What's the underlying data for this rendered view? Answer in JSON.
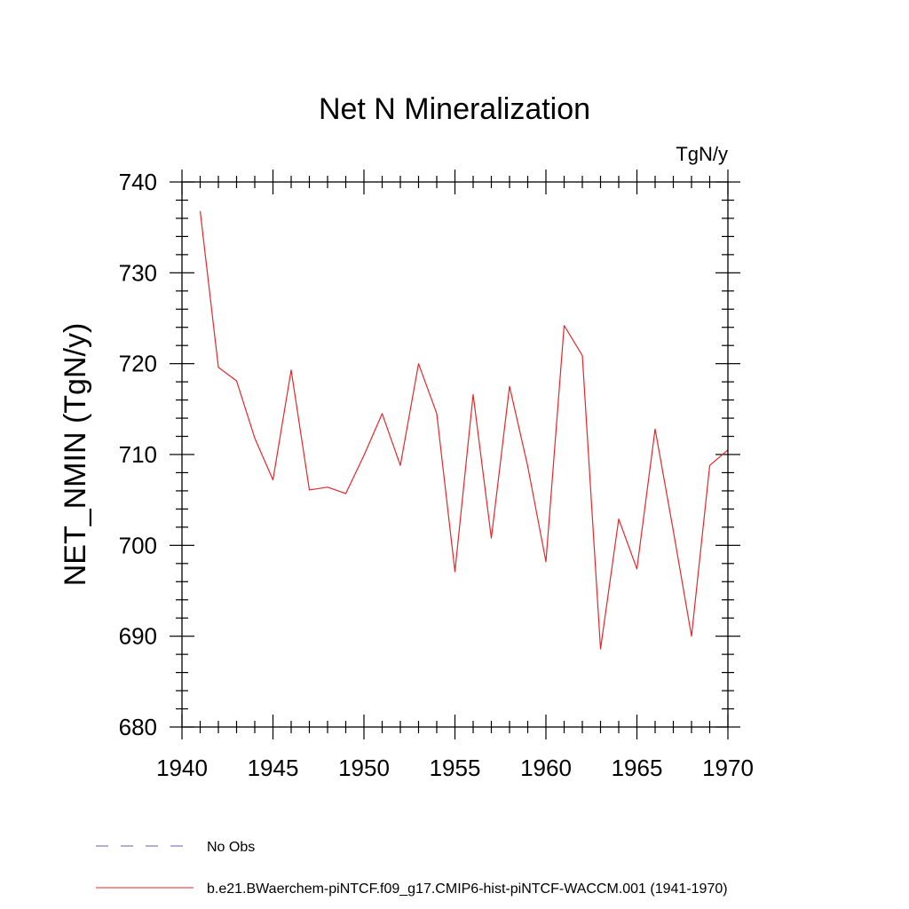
{
  "chart_data": {
    "type": "line",
    "title": "Net N Mineralization",
    "units": "TgN/y",
    "ylabel": "NET_NMIN  (TgN/y)",
    "xlabel": "",
    "xlim": [
      1940,
      1970
    ],
    "ylim": [
      680,
      740
    ],
    "x_major_ticks": [
      1940,
      1945,
      1950,
      1955,
      1960,
      1965,
      1970
    ],
    "y_major_ticks": [
      680,
      690,
      700,
      710,
      720,
      730,
      740
    ],
    "grid": false,
    "legend_position": "bottom-left",
    "series": [
      {
        "name": "b.e21.BWaerchem-piNTCF.f09_g17.CMIP6-hist-piNTCF-WACCM.001 (1941-1970)",
        "color": "#e8262a",
        "x": [
          1941,
          1942,
          1943,
          1944,
          1945,
          1946,
          1947,
          1948,
          1949,
          1950,
          1951,
          1952,
          1953,
          1954,
          1955,
          1956,
          1957,
          1958,
          1959,
          1960,
          1961,
          1962,
          1963,
          1964,
          1965,
          1966,
          1967,
          1968,
          1969,
          1970
        ],
        "values": [
          736.8,
          719.6,
          718.1,
          711.8,
          707.2,
          719.3,
          706.1,
          706.4,
          705.7,
          709.9,
          714.5,
          708.8,
          720.0,
          714.5,
          697.1,
          716.6,
          700.8,
          717.5,
          708.7,
          698.2,
          724.2,
          720.9,
          688.6,
          702.9,
          697.4,
          712.8,
          701.6,
          690.0,
          708.8,
          710.5
        ]
      }
    ],
    "legend": [
      {
        "label": "No Obs",
        "style": "dashed",
        "color": "#6a5fa8"
      },
      {
        "label": "b.e21.BWaerchem-piNTCF.f09_g17.CMIP6-hist-piNTCF-WACCM.001 (1941-1970)",
        "style": "solid",
        "color": "#e8262a"
      }
    ]
  }
}
